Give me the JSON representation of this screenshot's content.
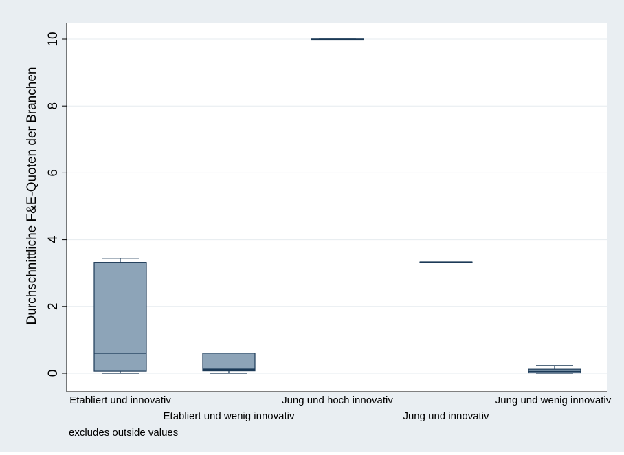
{
  "chart_data": {
    "type": "box",
    "ylabel": "Durchschnittliche F&E-Quoten der Branchen",
    "xlabel": "",
    "ylim": [
      0,
      10
    ],
    "yticks": [
      0,
      2,
      4,
      6,
      8,
      10
    ],
    "grid": true,
    "note": "excludes outside values",
    "box_fill": "#8da4b8",
    "box_stroke": "#1c3a57",
    "background": "#e9eef2",
    "categories": [
      "Etabliert und innovativ",
      "Etabliert und wenig innovativ",
      "Jung und hoch innovativ",
      "Jung und innovativ",
      "Jung und wenig innovativ"
    ],
    "boxes": [
      {
        "category": "Etabliert und innovativ",
        "min": 0.0,
        "q1": 0.06,
        "median": 0.6,
        "q3": 3.32,
        "max": 3.44
      },
      {
        "category": "Etabliert und wenig innovativ",
        "min": 0.0,
        "q1": 0.07,
        "median": 0.12,
        "q3": 0.6,
        "max": 0.6
      },
      {
        "category": "Jung und hoch innovativ",
        "min": 10.0,
        "q1": 10.0,
        "median": 10.0,
        "q3": 10.0,
        "max": 10.0
      },
      {
        "category": "Jung und innovativ",
        "min": 3.33,
        "q1": 3.33,
        "median": 3.33,
        "q3": 3.33,
        "max": 3.33
      },
      {
        "category": "Jung und wenig innovativ",
        "min": 0.0,
        "q1": 0.01,
        "median": 0.05,
        "q3": 0.12,
        "max": 0.23
      }
    ]
  }
}
